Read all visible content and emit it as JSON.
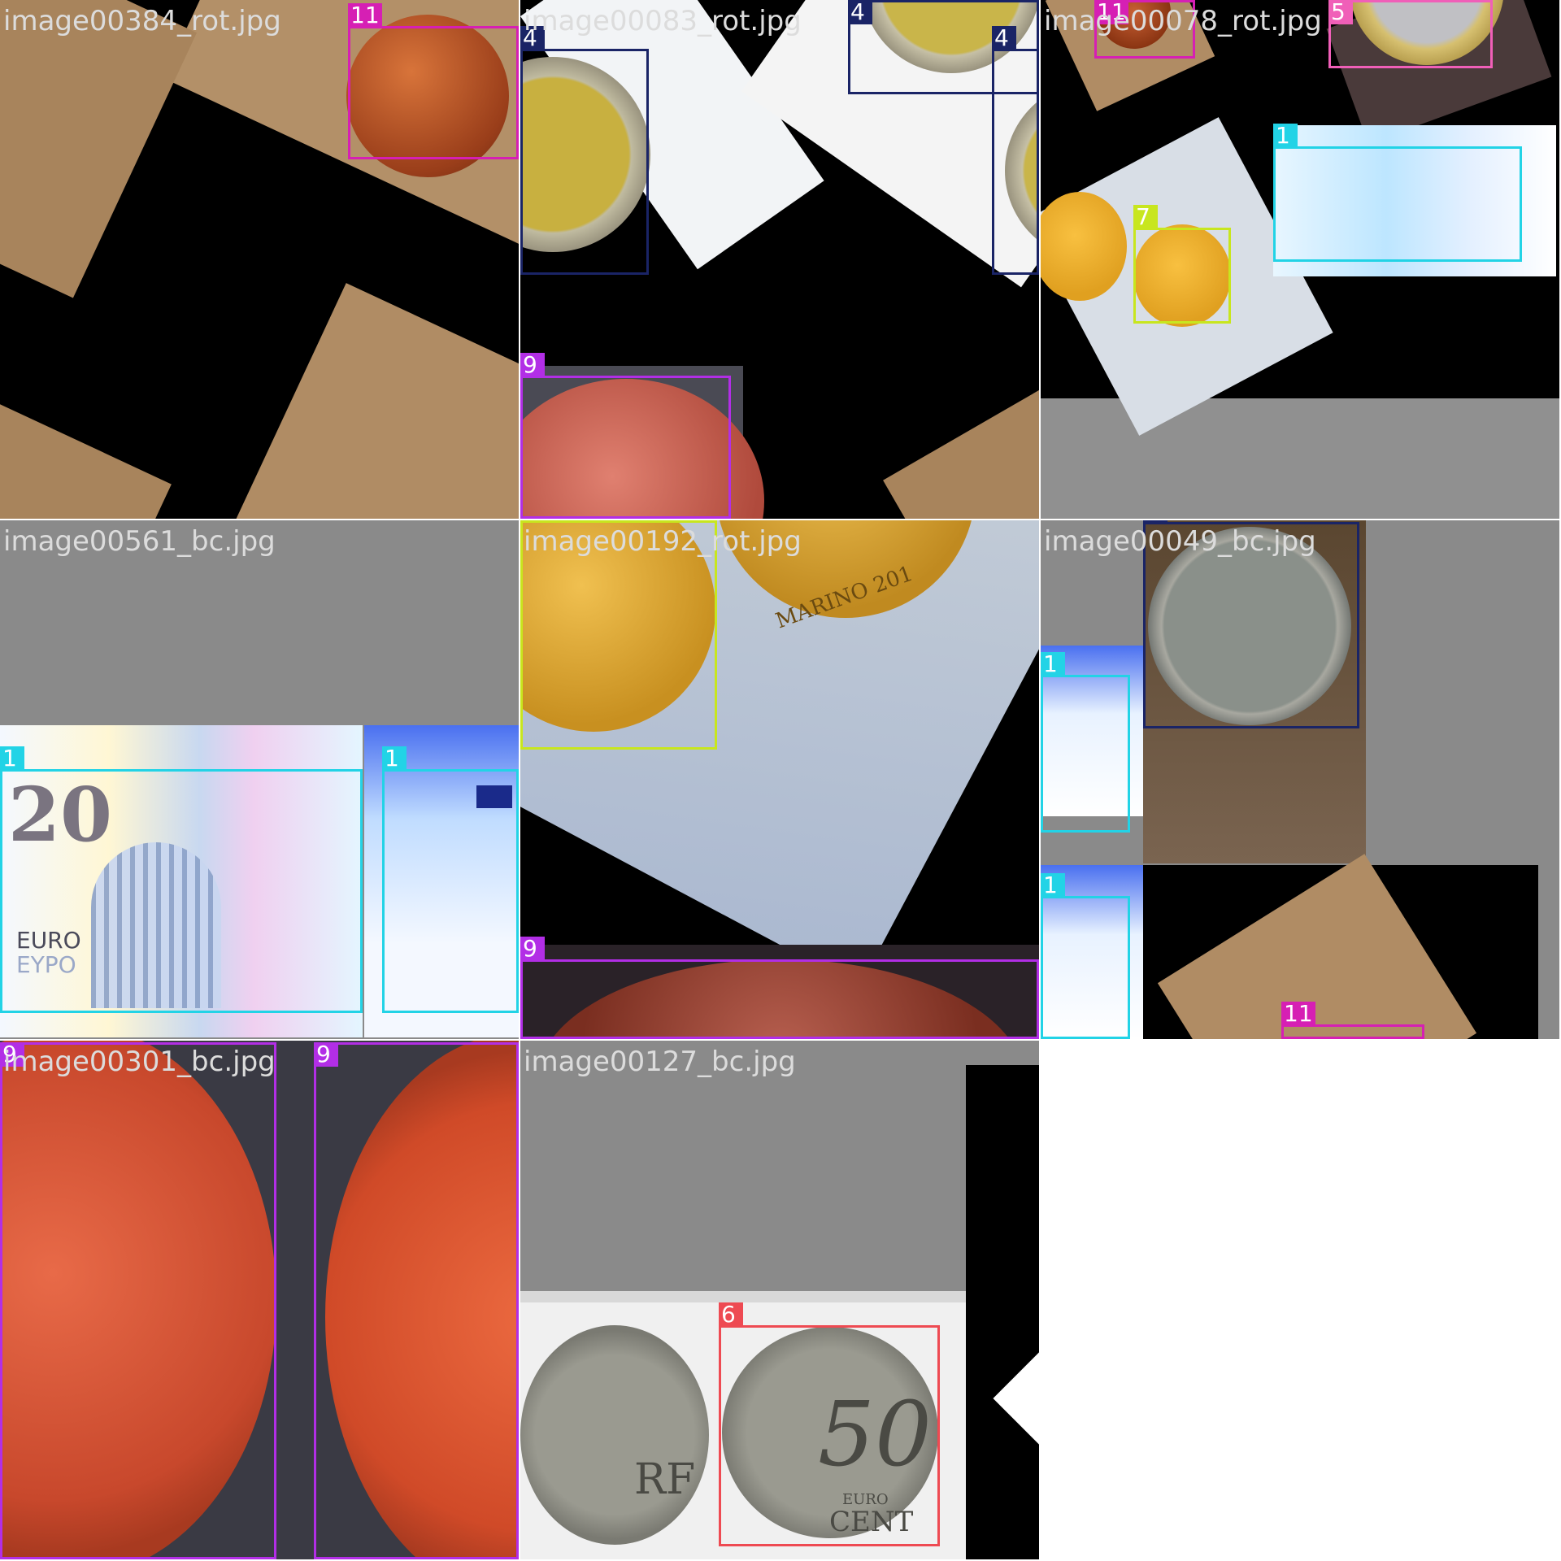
{
  "mosaic": {
    "tiles": [
      {
        "filename": "image00384_rot.jpg",
        "labels": [
          "11"
        ]
      },
      {
        "filename": "image00083_rot.jpg",
        "labels": [
          "4",
          "4",
          "4",
          "9"
        ]
      },
      {
        "filename": "image00078_rot.jpg",
        "labels": [
          "11",
          "5",
          "1",
          "7"
        ]
      },
      {
        "filename": "image00561_bc.jpg",
        "labels": [
          "1",
          "1"
        ]
      },
      {
        "filename": "image00192_rot.jpg",
        "labels": [
          "7",
          "9"
        ]
      },
      {
        "filename": "image00049_bc.jpg",
        "labels": [
          "4",
          "1",
          "1",
          "11"
        ]
      },
      {
        "filename": "image00301_bc.jpg",
        "labels": [
          "9",
          "9"
        ]
      },
      {
        "filename": "image00127_bc.jpg",
        "labels": [
          "6"
        ]
      }
    ]
  },
  "class_colors": {
    "1": "#22d3e6",
    "4": "#1a2466",
    "5": "#f05fb8",
    "6": "#ee4a52",
    "7": "#c8e61e",
    "9": "#b22ee6",
    "11": "#d61fb4"
  },
  "image_printed_text": {
    "banknote": [
      "20",
      "EURO",
      "EYPO"
    ],
    "coin": [
      "EURO",
      "CENT",
      "50",
      "RF",
      "MARINO 201"
    ]
  }
}
